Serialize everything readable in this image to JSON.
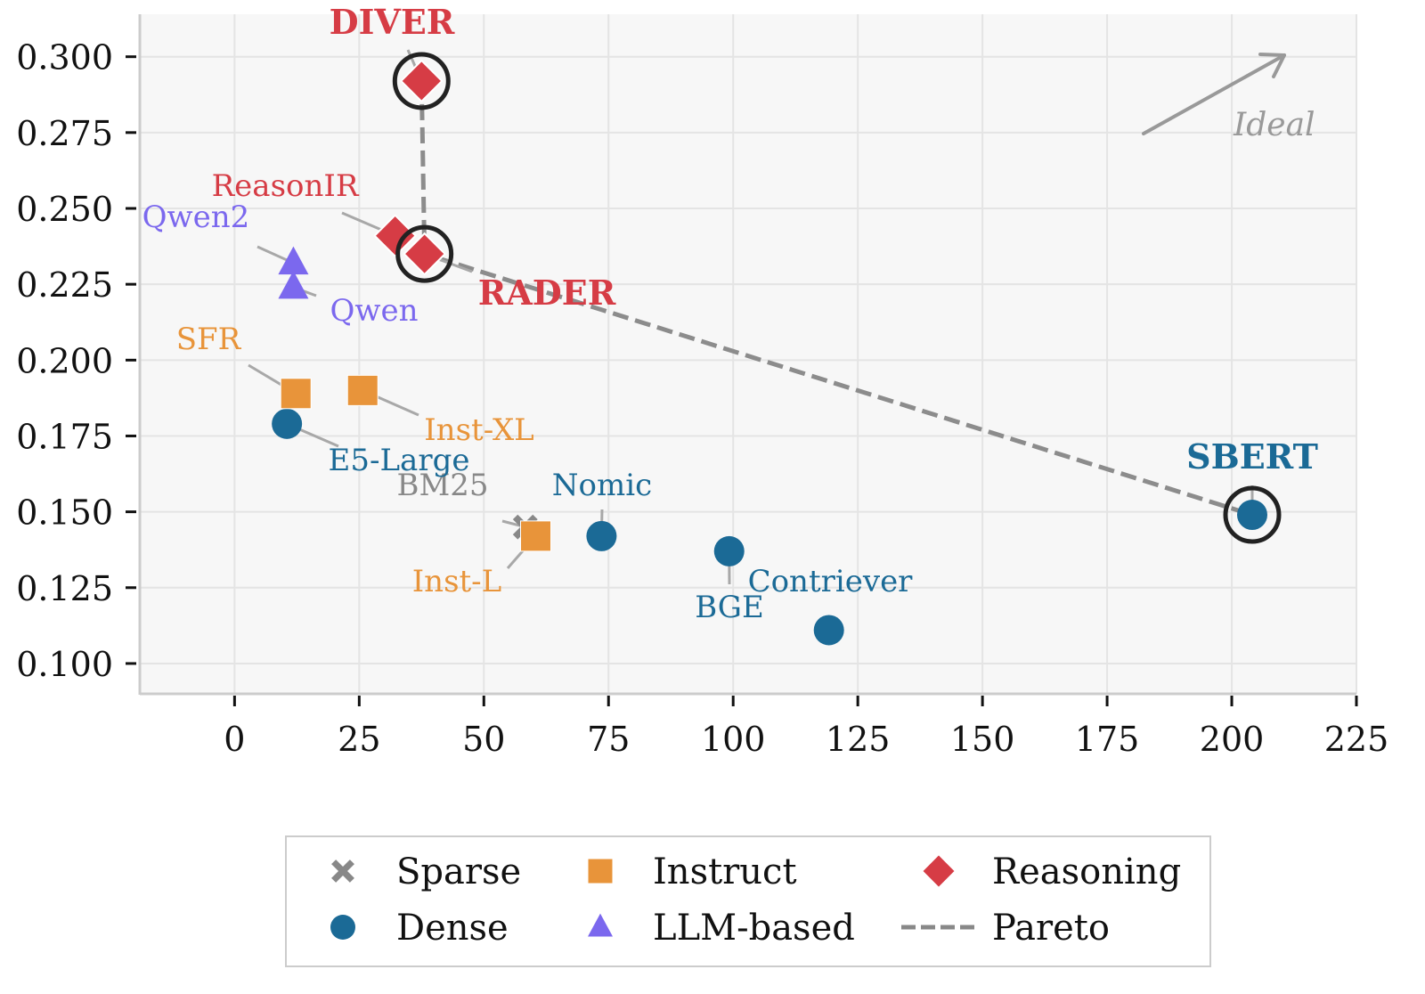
{
  "chart_data": {
    "type": "scatter",
    "title": "",
    "xlabel": "",
    "ylabel": "",
    "xlim": [
      -19,
      225
    ],
    "ylim": [
      0.09,
      0.314
    ],
    "xticks": [
      0,
      25,
      50,
      75,
      100,
      125,
      150,
      175,
      200,
      225
    ],
    "xtick_labels": [
      "0",
      "25",
      "50",
      "75",
      "100",
      "125",
      "150",
      "175",
      "200",
      "225"
    ],
    "yticks": [
      0.1,
      0.125,
      0.15,
      0.175,
      0.2,
      0.225,
      0.25,
      0.275,
      0.3
    ],
    "ytick_labels": [
      "0.100",
      "0.125",
      "0.150",
      "0.175",
      "0.200",
      "0.225",
      "0.250",
      "0.275",
      "0.300"
    ],
    "grid": true,
    "categories": {
      "Sparse": {
        "color": "#888888",
        "marker": "x"
      },
      "Dense": {
        "color": "#1b6a96",
        "marker": "circle"
      },
      "Instruct": {
        "color": "#e8943a",
        "marker": "square"
      },
      "LLM-based": {
        "color": "#7b68ee",
        "marker": "triangle"
      },
      "Reasoning": {
        "color": "#d63c45",
        "marker": "diamond"
      }
    },
    "points": [
      {
        "name": "DIVER",
        "x": 37.5,
        "y": 0.292,
        "category": "Reasoning",
        "pareto": true,
        "highlight": true
      },
      {
        "name": "RADER",
        "x": 38.1,
        "y": 0.235,
        "category": "Reasoning",
        "pareto": true,
        "highlight": true
      },
      {
        "name": "ReasonIR",
        "x": 32.2,
        "y": 0.241,
        "category": "Reasoning",
        "pareto": false,
        "highlight": false
      },
      {
        "name": "Qwen2",
        "x": 11.8,
        "y": 0.232,
        "category": "LLM-based",
        "pareto": false,
        "highlight": false
      },
      {
        "name": "Qwen",
        "x": 11.8,
        "y": 0.224,
        "category": "LLM-based",
        "pareto": false,
        "highlight": false
      },
      {
        "name": "SFR",
        "x": 12.3,
        "y": 0.189,
        "category": "Instruct",
        "pareto": false,
        "highlight": false
      },
      {
        "name": "Inst-XL",
        "x": 25.7,
        "y": 0.19,
        "category": "Instruct",
        "pareto": false,
        "highlight": false
      },
      {
        "name": "E5-Large",
        "x": 10.5,
        "y": 0.179,
        "category": "Dense",
        "pareto": false,
        "highlight": false
      },
      {
        "name": "BM25",
        "x": 58.3,
        "y": 0.145,
        "category": "Sparse",
        "pareto": false,
        "highlight": false
      },
      {
        "name": "Inst-L",
        "x": 60.4,
        "y": 0.142,
        "category": "Instruct",
        "pareto": false,
        "highlight": false
      },
      {
        "name": "Nomic",
        "x": 73.6,
        "y": 0.142,
        "category": "Dense",
        "pareto": false,
        "highlight": false
      },
      {
        "name": "BGE",
        "x": 99.2,
        "y": 0.137,
        "category": "Dense",
        "pareto": false,
        "highlight": false
      },
      {
        "name": "Contriever",
        "x": 119.2,
        "y": 0.111,
        "category": "Dense",
        "pareto": false,
        "highlight": false
      },
      {
        "name": "SBERT",
        "x": 204.1,
        "y": 0.149,
        "category": "Dense",
        "pareto": true,
        "highlight": true
      }
    ],
    "pareto_front": [
      "DIVER",
      "RADER",
      "SBERT"
    ],
    "annotations": [
      {
        "text": "Ideal",
        "type": "arrow",
        "direction": "up-right"
      }
    ],
    "legend": {
      "placement": "bottom-center",
      "entries": [
        {
          "label": "Sparse",
          "marker": "x",
          "color": "#888888"
        },
        {
          "label": "Instruct",
          "marker": "square",
          "color": "#e8943a"
        },
        {
          "label": "Reasoning",
          "marker": "diamond",
          "color": "#d63c45"
        },
        {
          "label": "Dense",
          "marker": "circle",
          "color": "#1b6a96"
        },
        {
          "label": "LLM-based",
          "marker": "triangle",
          "color": "#7b68ee"
        },
        {
          "label": "Pareto",
          "marker": "dashed-line",
          "color": "#888888"
        }
      ]
    }
  }
}
